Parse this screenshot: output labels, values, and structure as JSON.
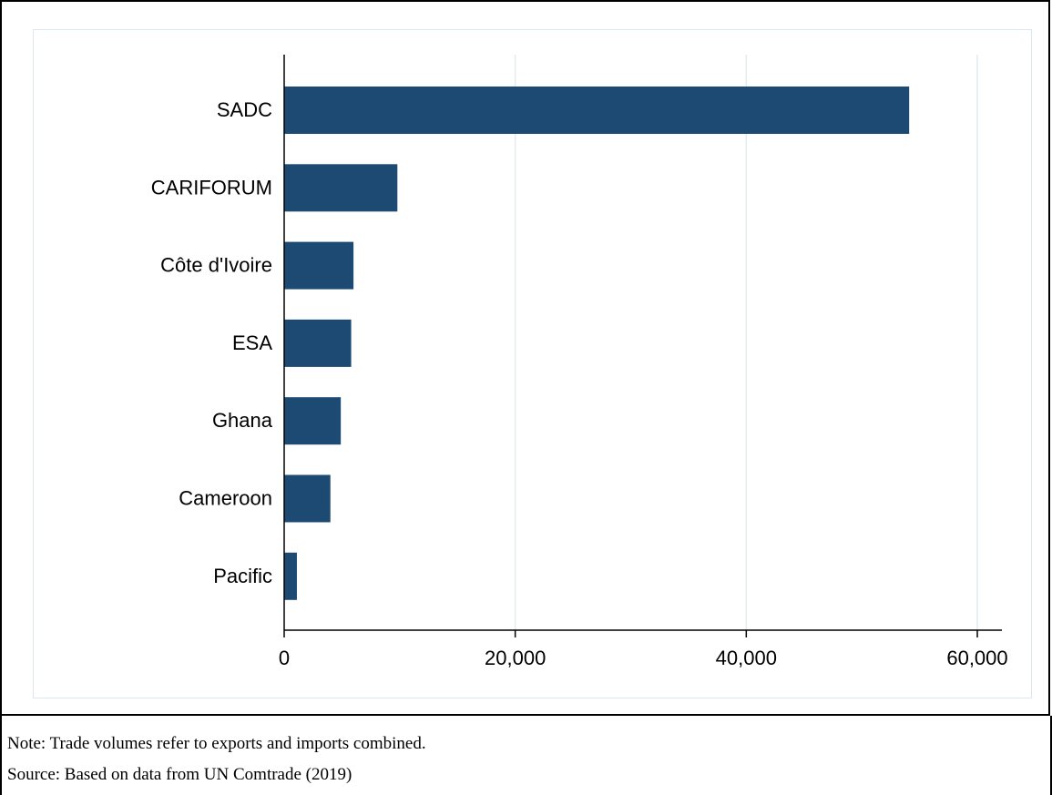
{
  "chart_data": {
    "type": "bar",
    "orientation": "horizontal",
    "categories": [
      "SADC",
      "CARIFORUM",
      "Côte d'Ivoire",
      "ESA",
      "Ghana",
      "Cameroon",
      "Pacific"
    ],
    "values": [
      54100,
      9800,
      6000,
      5800,
      4900,
      4000,
      1100
    ],
    "xlim": [
      0,
      62000
    ],
    "xticks": [
      0,
      20000,
      40000,
      60000
    ],
    "xtick_labels": [
      "0",
      "20,000",
      "40,000",
      "60,000"
    ],
    "title": "",
    "xlabel": "",
    "ylabel": "",
    "grid": "vertical",
    "bar_color": "#1c4a72",
    "grid_color": "#e2ecef"
  },
  "notes": {
    "note": "Note: Trade volumes refer to exports and imports combined.",
    "source": "Source: Based on data from UN Comtrade (2019)"
  }
}
